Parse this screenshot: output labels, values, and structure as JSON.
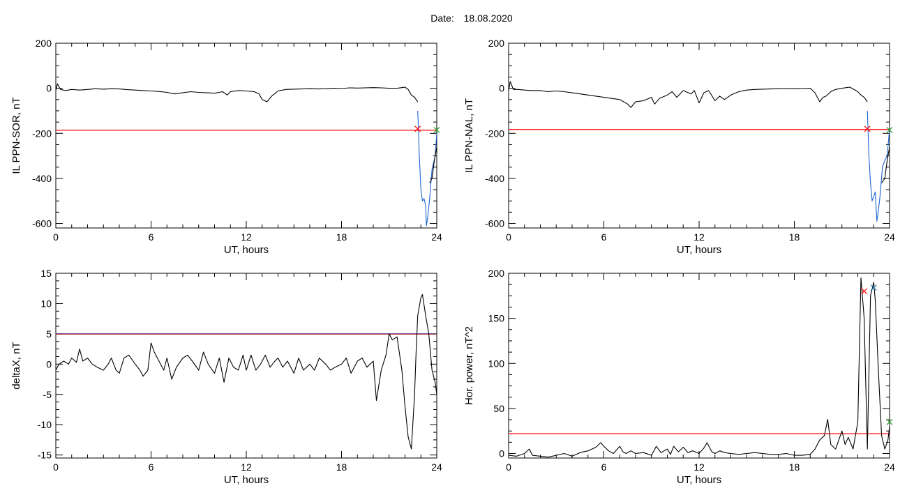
{
  "header": {
    "date_label": "Date:",
    "date_value": "18.08.2020"
  },
  "chart_data": [
    {
      "type": "line",
      "xlabel": "UT, hours",
      "ylabel": "IL PPN-SOR, nT",
      "xlim": [
        0,
        24
      ],
      "ylim": [
        -620,
        200
      ],
      "xticks": [
        0,
        6,
        12,
        18,
        24
      ],
      "yticks": [
        -600,
        -400,
        -200,
        0,
        200
      ],
      "series": [
        {
          "color": "#000000",
          "x": [
            0,
            0.1,
            0.3,
            0.6,
            1,
            1.5,
            2,
            2.5,
            3,
            3.5,
            4,
            4.5,
            5,
            5.5,
            6,
            6.5,
            7,
            7.5,
            8,
            8.5,
            9,
            9.5,
            10,
            10.5,
            10.8,
            11,
            11.5,
            12,
            12.5,
            12.8,
            13,
            13.3,
            13.6,
            14,
            14.5,
            15,
            15.5,
            16,
            16.5,
            17,
            17.5,
            18,
            18.5,
            19,
            19.5,
            20,
            20.5,
            21,
            21.5,
            21.8,
            22,
            22.2,
            22.4,
            22.6,
            22.8
          ],
          "y": [
            -10,
            20,
            -5,
            -10,
            -5,
            -8,
            -5,
            -2,
            -4,
            -2,
            -3,
            -6,
            -8,
            -10,
            -12,
            -14,
            -18,
            -25,
            -20,
            -15,
            -18,
            -20,
            -22,
            -15,
            -30,
            -15,
            -10,
            -12,
            -15,
            -25,
            -50,
            -60,
            -35,
            -12,
            -5,
            -4,
            -3,
            -2,
            -3,
            -2,
            0,
            -1,
            2,
            1,
            2,
            3,
            2,
            0,
            0,
            3,
            5,
            -5,
            -30,
            -40,
            -60
          ]
        },
        {
          "color": "#1e64d2",
          "x": [
            22.8,
            22.85,
            22.9,
            23.0,
            23.1,
            23.2,
            23.3,
            23.35,
            23.45,
            23.55,
            23.7,
            23.8,
            23.9,
            24.0
          ],
          "y": [
            -100,
            -180,
            -300,
            -450,
            -500,
            -490,
            -520,
            -610,
            -560,
            -490,
            -360,
            -330,
            -300,
            -200
          ]
        },
        {
          "color": "#000000",
          "x": [
            23.55,
            23.7,
            23.85,
            24.0
          ],
          "y": [
            -420,
            -400,
            -320,
            -260
          ]
        }
      ],
      "hlines": [
        {
          "y": -186,
          "color": "#ff0000"
        }
      ],
      "markers": [
        {
          "x": 22.8,
          "y": -180,
          "color": "#ff0000",
          "symbol": "x"
        },
        {
          "x": 24.0,
          "y": -185,
          "color": "#2ca02c",
          "symbol": "x"
        }
      ]
    },
    {
      "type": "line",
      "xlabel": "UT, hours",
      "ylabel": "IL PPN-NAL, nT",
      "xlim": [
        0,
        24
      ],
      "ylim": [
        -620,
        200
      ],
      "xticks": [
        0,
        6,
        12,
        18,
        24
      ],
      "yticks": [
        -600,
        -400,
        -200,
        0,
        200
      ],
      "series": [
        {
          "color": "#000000",
          "x": [
            0,
            0.1,
            0.3,
            0.6,
            1,
            1.5,
            2,
            2.5,
            3,
            3.5,
            4,
            4.5,
            5,
            5.5,
            6,
            6.5,
            7,
            7.5,
            7.7,
            8,
            8.5,
            9,
            9.2,
            9.5,
            10,
            10.3,
            10.6,
            11,
            11.5,
            11.7,
            12,
            12.3,
            12.6,
            13,
            13.3,
            13.6,
            14,
            14.5,
            15,
            15.5,
            16,
            16.5,
            17,
            17.5,
            18,
            18.5,
            19,
            19.3,
            19.6,
            19.8,
            20,
            20.3,
            20.6,
            21,
            21.5,
            22,
            22.2,
            22.4,
            22.6
          ],
          "y": [
            -10,
            30,
            -5,
            -5,
            -8,
            -10,
            -10,
            -15,
            -12,
            -15,
            -20,
            -25,
            -30,
            -35,
            -40,
            -45,
            -50,
            -70,
            -85,
            -60,
            -55,
            -40,
            -70,
            -45,
            -30,
            -15,
            -40,
            -10,
            -25,
            -10,
            -65,
            -20,
            -10,
            -55,
            -35,
            -50,
            -30,
            -15,
            -8,
            -5,
            -4,
            -3,
            -2,
            -1,
            -2,
            -1,
            0,
            -20,
            -60,
            -40,
            -35,
            -15,
            -5,
            0,
            5,
            -15,
            -30,
            -40,
            -60
          ]
        },
        {
          "color": "#1e64d2",
          "x": [
            22.6,
            22.65,
            22.7,
            22.8,
            22.9,
            23.0,
            23.1,
            23.2,
            23.3,
            23.4,
            23.55,
            23.7,
            23.85,
            24.0
          ],
          "y": [
            -100,
            -200,
            -300,
            -420,
            -500,
            -480,
            -460,
            -590,
            -540,
            -480,
            -350,
            -320,
            -300,
            -180
          ]
        },
        {
          "color": "#000000",
          "x": [
            23.5,
            23.7,
            23.85,
            24.0
          ],
          "y": [
            -420,
            -400,
            -320,
            -260
          ]
        }
      ],
      "hlines": [
        {
          "y": -183,
          "color": "#ff0000"
        }
      ],
      "markers": [
        {
          "x": 22.6,
          "y": -180,
          "color": "#ff0000",
          "symbol": "x"
        },
        {
          "x": 24.0,
          "y": -185,
          "color": "#2ca02c",
          "symbol": "x"
        }
      ]
    },
    {
      "type": "line",
      "xlabel": "UT, hours",
      "ylabel": "deltaX, nT",
      "xlim": [
        0,
        24
      ],
      "ylim": [
        -15.5,
        15
      ],
      "xticks": [
        0,
        6,
        12,
        18,
        24
      ],
      "yticks": [
        -15,
        -10,
        -5,
        0,
        5,
        10,
        15
      ],
      "series": [
        {
          "color": "#000000",
          "x": [
            0,
            0.2,
            0.5,
            0.8,
            1,
            1.3,
            1.5,
            1.7,
            2,
            2.3,
            2.6,
            3,
            3.3,
            3.5,
            3.8,
            4,
            4.3,
            4.6,
            5,
            5.3,
            5.5,
            5.8,
            6,
            6.2,
            6.5,
            6.8,
            7,
            7.3,
            7.6,
            8,
            8.3,
            8.6,
            9,
            9.3,
            9.6,
            10,
            10.3,
            10.6,
            10.9,
            11.2,
            11.5,
            11.8,
            12,
            12.3,
            12.6,
            12.9,
            13.2,
            13.5,
            13.8,
            14,
            14.3,
            14.6,
            15,
            15.3,
            15.6,
            16,
            16.3,
            16.6,
            17,
            17.3,
            17.6,
            18,
            18.3,
            18.6,
            19,
            19.3,
            19.6,
            20,
            20.2,
            20.5,
            20.8,
            21,
            21.2,
            21.5,
            21.8,
            22,
            22.2,
            22.4,
            22.6,
            22.7,
            22.8,
            23,
            23.1,
            23.3,
            23.5,
            23.7,
            23.9,
            24
          ],
          "y": [
            -1,
            0,
            0.5,
            0,
            1,
            0.3,
            2.5,
            0.5,
            1,
            0,
            -0.5,
            -1,
            0,
            1,
            -1,
            -1.5,
            1,
            1.5,
            0,
            -1,
            -2,
            -1,
            3.5,
            2,
            0.5,
            -1,
            1,
            -2.5,
            -0.5,
            1,
            1.5,
            0.5,
            -1,
            2,
            0,
            -1.5,
            1,
            -3,
            1,
            -0.5,
            -1,
            1.5,
            -1,
            1.5,
            -1,
            0,
            1.5,
            -0.5,
            0.5,
            1,
            -0.5,
            0.5,
            -1.5,
            1,
            -1,
            0,
            -1,
            1,
            0,
            -1,
            -0.5,
            0,
            1,
            -1.5,
            0.5,
            1,
            -0.5,
            0.5,
            -6,
            -1,
            1.5,
            5,
            4,
            4.5,
            -1,
            -7,
            -12,
            -14,
            -5,
            2,
            8,
            11,
            11.5,
            8,
            5,
            -1,
            -3,
            -5
          ]
        }
      ],
      "hlines": [
        {
          "y": 5,
          "color": "#2222aa"
        },
        {
          "y": 4.95,
          "color": "#aa2222"
        }
      ],
      "markers": []
    },
    {
      "type": "line",
      "xlabel": "UT, hours",
      "ylabel": "Hor. power, nT^2",
      "xlim": [
        0,
        24
      ],
      "ylim": [
        -5,
        200
      ],
      "xticks": [
        0,
        6,
        12,
        18,
        24
      ],
      "yticks": [
        0,
        50,
        100,
        150,
        200
      ],
      "series": [
        {
          "color": "#000000",
          "x": [
            0,
            0.5,
            1,
            1.3,
            1.5,
            2,
            2.5,
            3,
            3.5,
            4,
            4.5,
            5,
            5.5,
            5.8,
            6,
            6.3,
            6.6,
            7,
            7.2,
            7.4,
            7.7,
            8,
            8.5,
            9,
            9.3,
            9.6,
            10,
            10.2,
            10.4,
            10.7,
            11,
            11.3,
            11.6,
            12,
            12.3,
            12.5,
            12.8,
            13,
            13.3,
            13.6,
            14,
            14.5,
            15,
            15.5,
            16,
            16.5,
            17,
            17.5,
            18,
            18.5,
            19,
            19.3,
            19.6,
            19.9,
            20.1,
            20.3,
            20.6,
            21,
            21.2,
            21.4,
            21.7,
            22,
            22.2,
            22.4,
            22.6,
            22.8,
            23,
            23.1,
            23.3,
            23.5,
            23.7,
            23.9,
            24
          ],
          "y": [
            -2,
            -3,
            0,
            5,
            -2,
            -3,
            -4,
            -2,
            0,
            -3,
            1,
            3,
            7,
            12,
            8,
            3,
            0,
            8,
            2,
            0,
            3,
            0,
            1,
            -2,
            8,
            1,
            5,
            -1,
            8,
            2,
            7,
            1,
            3,
            0,
            6,
            12,
            2,
            0,
            3,
            1,
            0,
            -1,
            0,
            1,
            0,
            -1,
            -1,
            0,
            -2,
            -2,
            -1,
            5,
            15,
            20,
            38,
            10,
            5,
            25,
            10,
            18,
            5,
            35,
            195,
            150,
            5,
            175,
            190,
            170,
            90,
            20,
            5,
            15,
            30
          ]
        }
      ],
      "hlines": [
        {
          "y": 22,
          "color": "#ff0000"
        }
      ],
      "markers": [
        {
          "x": 22.4,
          "y": 180,
          "color": "#ff0000",
          "symbol": "x"
        },
        {
          "x": 23.0,
          "y": 184,
          "color": "#1f77b4",
          "symbol": "x"
        },
        {
          "x": 24.0,
          "y": 35,
          "color": "#2ca02c",
          "symbol": "x"
        }
      ]
    }
  ]
}
